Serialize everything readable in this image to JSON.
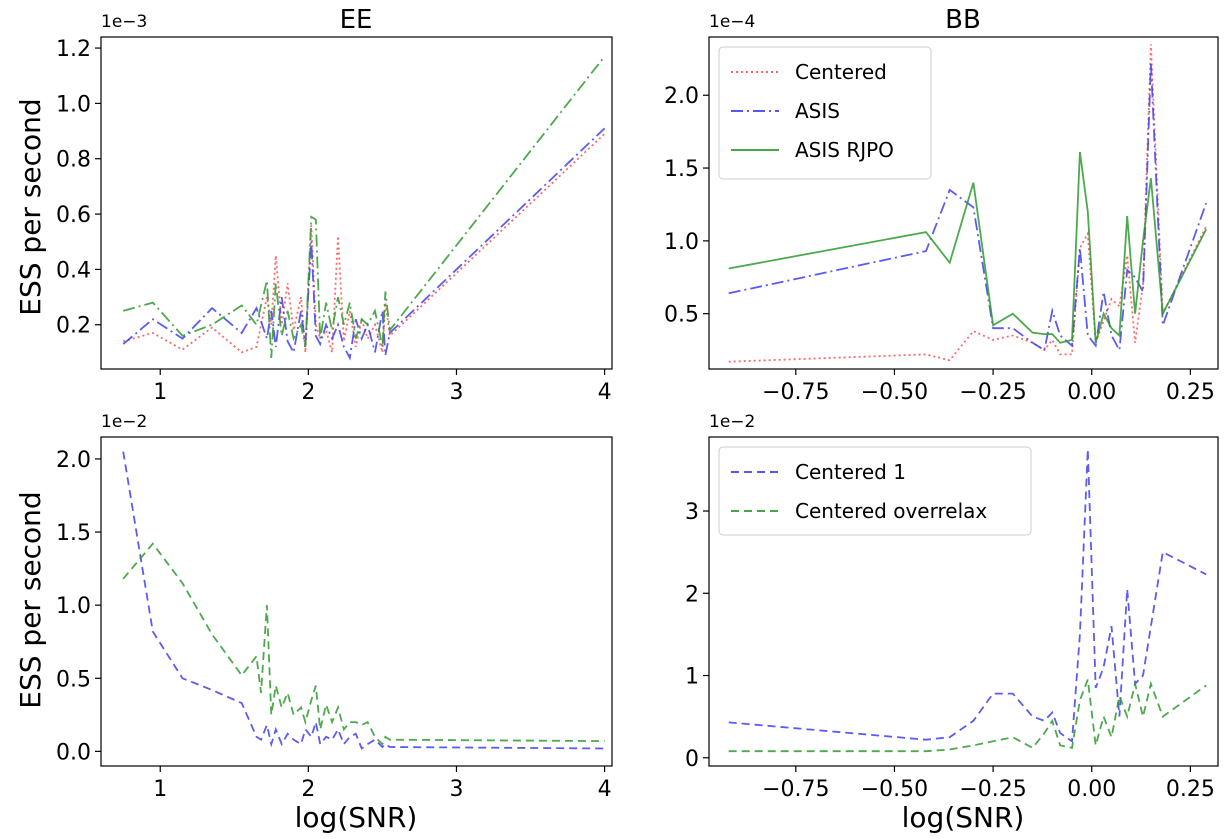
{
  "colors": {
    "red": "#ff4d4d",
    "blue": "#4040ee",
    "green": "#2e9a2e"
  },
  "chart_data": [
    {
      "id": "ee_top",
      "type": "line",
      "title": "EE",
      "ylabel": "ESS per second",
      "xlabel": "",
      "multiplier": "1e−3",
      "xlim": [
        0.6,
        4.05
      ],
      "ylim": [
        0.04,
        1.24
      ],
      "xticks": [
        1,
        2,
        3,
        4
      ],
      "xtick_labels": [
        "1",
        "2",
        "3",
        "4"
      ],
      "yticks": [
        0.2,
        0.4,
        0.6,
        0.8,
        1.0,
        1.2
      ],
      "ytick_labels": [
        "0.2",
        "0.4",
        "0.6",
        "0.8",
        "1.0",
        "1.2"
      ],
      "legend": null,
      "series": [
        {
          "name": "Centered",
          "color": "red",
          "dash": "dot",
          "x": [
            0.75,
            0.95,
            1.15,
            1.35,
            1.55,
            1.65,
            1.72,
            1.75,
            1.78,
            1.82,
            1.86,
            1.9,
            1.95,
            1.98,
            2.02,
            2.05,
            2.08,
            2.12,
            2.16,
            2.2,
            2.24,
            2.28,
            2.32,
            2.36,
            2.4,
            2.45,
            2.5,
            2.52,
            2.55,
            4.0
          ],
          "y": [
            0.14,
            0.17,
            0.11,
            0.19,
            0.1,
            0.12,
            0.3,
            0.2,
            0.45,
            0.2,
            0.35,
            0.18,
            0.3,
            0.1,
            0.56,
            0.2,
            0.15,
            0.18,
            0.1,
            0.52,
            0.14,
            0.25,
            0.12,
            0.22,
            0.15,
            0.2,
            0.1,
            0.28,
            0.16,
            0.89
          ]
        },
        {
          "name": "ASIS",
          "color": "blue",
          "dash": "dashdot",
          "x": [
            0.75,
            0.95,
            1.15,
            1.35,
            1.55,
            1.65,
            1.72,
            1.75,
            1.78,
            1.82,
            1.86,
            1.9,
            1.95,
            1.98,
            2.02,
            2.05,
            2.08,
            2.12,
            2.16,
            2.2,
            2.24,
            2.28,
            2.32,
            2.36,
            2.4,
            2.45,
            2.5,
            2.52,
            2.55,
            4.0
          ],
          "y": [
            0.13,
            0.22,
            0.15,
            0.26,
            0.17,
            0.26,
            0.15,
            0.25,
            0.12,
            0.3,
            0.14,
            0.1,
            0.25,
            0.13,
            0.5,
            0.16,
            0.13,
            0.2,
            0.15,
            0.2,
            0.12,
            0.08,
            0.22,
            0.15,
            0.2,
            0.1,
            0.25,
            0.09,
            0.17,
            0.91
          ]
        },
        {
          "name": "ASIS RJPO",
          "color": "green",
          "dash": "dashdot",
          "x": [
            0.75,
            0.95,
            1.15,
            1.35,
            1.55,
            1.65,
            1.72,
            1.75,
            1.78,
            1.82,
            1.86,
            1.9,
            1.95,
            1.98,
            2.02,
            2.05,
            2.08,
            2.12,
            2.16,
            2.2,
            2.24,
            2.28,
            2.32,
            2.36,
            2.4,
            2.45,
            2.5,
            2.52,
            2.55,
            4.0
          ],
          "y": [
            0.25,
            0.28,
            0.16,
            0.2,
            0.27,
            0.2,
            0.36,
            0.08,
            0.35,
            0.16,
            0.25,
            0.15,
            0.2,
            0.12,
            0.59,
            0.58,
            0.15,
            0.28,
            0.18,
            0.3,
            0.2,
            0.28,
            0.15,
            0.22,
            0.2,
            0.25,
            0.12,
            0.32,
            0.18,
            1.17
          ]
        }
      ]
    },
    {
      "id": "bb_top",
      "type": "line",
      "title": "BB",
      "ylabel": "",
      "xlabel": "",
      "multiplier": "1e−4",
      "xlim": [
        -0.97,
        0.32
      ],
      "ylim": [
        0.12,
        2.4
      ],
      "xticks": [
        -0.75,
        -0.5,
        -0.25,
        0.0,
        0.25
      ],
      "xtick_labels": [
        "−0.75",
        "−0.50",
        "−0.25",
        "0.00",
        "0.25"
      ],
      "yticks": [
        0.5,
        1.0,
        1.5,
        2.0
      ],
      "ytick_labels": [
        "0.5",
        "1.0",
        "1.5",
        "2.0"
      ],
      "legend": {
        "placement": "top-left"
      },
      "series": [
        {
          "name": "Centered",
          "color": "red",
          "dash": "dot",
          "x": [
            -0.92,
            -0.42,
            -0.36,
            -0.3,
            -0.25,
            -0.2,
            -0.15,
            -0.12,
            -0.1,
            -0.08,
            -0.05,
            -0.03,
            -0.01,
            0.01,
            0.03,
            0.05,
            0.07,
            0.09,
            0.11,
            0.13,
            0.15,
            0.18,
            0.29
          ],
          "y": [
            0.17,
            0.22,
            0.18,
            0.38,
            0.32,
            0.35,
            0.3,
            0.25,
            0.32,
            0.22,
            0.22,
            0.95,
            1.05,
            0.3,
            0.45,
            0.6,
            0.55,
            0.9,
            0.3,
            0.7,
            2.35,
            0.5,
            1.1
          ]
        },
        {
          "name": "ASIS",
          "color": "blue",
          "dash": "dashdot",
          "x": [
            -0.92,
            -0.42,
            -0.36,
            -0.3,
            -0.25,
            -0.2,
            -0.15,
            -0.12,
            -0.1,
            -0.08,
            -0.05,
            -0.03,
            -0.01,
            0.01,
            0.03,
            0.05,
            0.07,
            0.09,
            0.11,
            0.13,
            0.15,
            0.18,
            0.29
          ],
          "y": [
            0.64,
            0.93,
            1.35,
            1.23,
            0.4,
            0.4,
            0.3,
            0.25,
            0.52,
            0.35,
            0.28,
            0.95,
            0.35,
            0.28,
            0.65,
            0.35,
            0.25,
            0.8,
            0.75,
            0.65,
            2.22,
            0.42,
            1.26
          ]
        },
        {
          "name": "ASIS RJPO",
          "color": "green",
          "dash": "solid",
          "x": [
            -0.92,
            -0.42,
            -0.36,
            -0.3,
            -0.25,
            -0.2,
            -0.15,
            -0.12,
            -0.1,
            -0.08,
            -0.05,
            -0.03,
            -0.01,
            0.01,
            0.03,
            0.05,
            0.07,
            0.09,
            0.11,
            0.13,
            0.15,
            0.18,
            0.29
          ],
          "y": [
            0.81,
            1.06,
            0.85,
            1.4,
            0.42,
            0.5,
            0.37,
            0.36,
            0.36,
            0.3,
            0.32,
            1.61,
            1.2,
            0.3,
            0.5,
            0.4,
            0.35,
            1.17,
            0.5,
            1.0,
            1.43,
            0.5,
            1.08
          ]
        }
      ]
    },
    {
      "id": "ee_bottom",
      "type": "line",
      "title": "",
      "ylabel": "ESS per second",
      "xlabel": "log(SNR)",
      "multiplier": "1e−2",
      "xlim": [
        0.6,
        4.05
      ],
      "ylim": [
        -0.1,
        2.15
      ],
      "xticks": [
        1,
        2,
        3,
        4
      ],
      "xtick_labels": [
        "1",
        "2",
        "3",
        "4"
      ],
      "yticks": [
        0.0,
        0.5,
        1.0,
        1.5,
        2.0
      ],
      "ytick_labels": [
        "0.0",
        "0.5",
        "1.0",
        "1.5",
        "2.0"
      ],
      "legend": null,
      "series": [
        {
          "name": "",
          "color": "blue",
          "dash": "dashed",
          "x": [
            0.75,
            0.95,
            1.15,
            1.35,
            1.55,
            1.65,
            1.68,
            1.72,
            1.75,
            1.78,
            1.82,
            1.86,
            1.9,
            1.95,
            1.98,
            2.02,
            2.05,
            2.08,
            2.12,
            2.16,
            2.2,
            2.24,
            2.28,
            2.32,
            2.36,
            2.4,
            2.45,
            2.5,
            2.52,
            2.55,
            4.0
          ],
          "y": [
            2.05,
            0.82,
            0.5,
            0.42,
            0.33,
            0.1,
            0.08,
            0.18,
            0.05,
            0.15,
            0.05,
            0.12,
            0.08,
            0.05,
            0.15,
            0.1,
            0.2,
            0.05,
            0.1,
            0.08,
            0.15,
            0.05,
            0.1,
            0.12,
            0.02,
            0.05,
            0.08,
            0.03,
            0.05,
            0.03,
            0.02
          ]
        },
        {
          "name": "",
          "color": "green",
          "dash": "dashed",
          "x": [
            0.75,
            0.95,
            1.15,
            1.35,
            1.55,
            1.65,
            1.68,
            1.72,
            1.75,
            1.78,
            1.82,
            1.86,
            1.9,
            1.95,
            1.98,
            2.02,
            2.05,
            2.08,
            2.12,
            2.16,
            2.2,
            2.24,
            2.28,
            2.32,
            2.36,
            2.4,
            2.45,
            2.5,
            2.52,
            2.55,
            4.0
          ],
          "y": [
            1.18,
            1.42,
            1.15,
            0.8,
            0.52,
            0.65,
            0.4,
            1.0,
            0.25,
            0.45,
            0.3,
            0.4,
            0.25,
            0.3,
            0.2,
            0.35,
            0.45,
            0.15,
            0.32,
            0.2,
            0.3,
            0.15,
            0.2,
            0.2,
            0.18,
            0.2,
            0.1,
            0.05,
            0.1,
            0.08,
            0.07
          ]
        }
      ]
    },
    {
      "id": "bb_bottom",
      "type": "line",
      "title": "",
      "ylabel": "",
      "xlabel": "log(SNR)",
      "multiplier": "1e−2",
      "xlim": [
        -0.97,
        0.32
      ],
      "ylim": [
        -0.1,
        3.9
      ],
      "xticks": [
        -0.75,
        -0.5,
        -0.25,
        0.0,
        0.25
      ],
      "xtick_labels": [
        "−0.75",
        "−0.50",
        "−0.25",
        "0.00",
        "0.25"
      ],
      "yticks": [
        0,
        1,
        2,
        3
      ],
      "ytick_labels": [
        "0",
        "1",
        "2",
        "3"
      ],
      "legend": {
        "placement": "top-left"
      },
      "series": [
        {
          "name": "Centered 1",
          "color": "blue",
          "dash": "dashed",
          "x": [
            -0.92,
            -0.42,
            -0.36,
            -0.3,
            -0.25,
            -0.2,
            -0.15,
            -0.12,
            -0.1,
            -0.08,
            -0.05,
            -0.03,
            -0.01,
            0.01,
            0.03,
            0.05,
            0.07,
            0.09,
            0.11,
            0.13,
            0.18,
            0.29
          ],
          "y": [
            0.43,
            0.22,
            0.25,
            0.45,
            0.78,
            0.78,
            0.5,
            0.45,
            0.55,
            0.3,
            0.2,
            1.5,
            3.75,
            0.85,
            1.1,
            1.6,
            0.5,
            2.05,
            0.9,
            1.0,
            2.5,
            2.23
          ]
        },
        {
          "name": "Centered overrelax",
          "color": "green",
          "dash": "dashed",
          "x": [
            -0.92,
            -0.42,
            -0.36,
            -0.3,
            -0.25,
            -0.2,
            -0.15,
            -0.12,
            -0.1,
            -0.08,
            -0.05,
            -0.03,
            -0.01,
            0.01,
            0.03,
            0.05,
            0.07,
            0.09,
            0.11,
            0.13,
            0.15,
            0.18,
            0.29
          ],
          "y": [
            0.08,
            0.08,
            0.1,
            0.15,
            0.2,
            0.25,
            0.12,
            0.3,
            0.45,
            0.15,
            0.12,
            0.7,
            0.95,
            0.15,
            0.5,
            0.25,
            0.75,
            0.5,
            0.9,
            0.5,
            0.9,
            0.5,
            0.88
          ]
        }
      ]
    }
  ]
}
